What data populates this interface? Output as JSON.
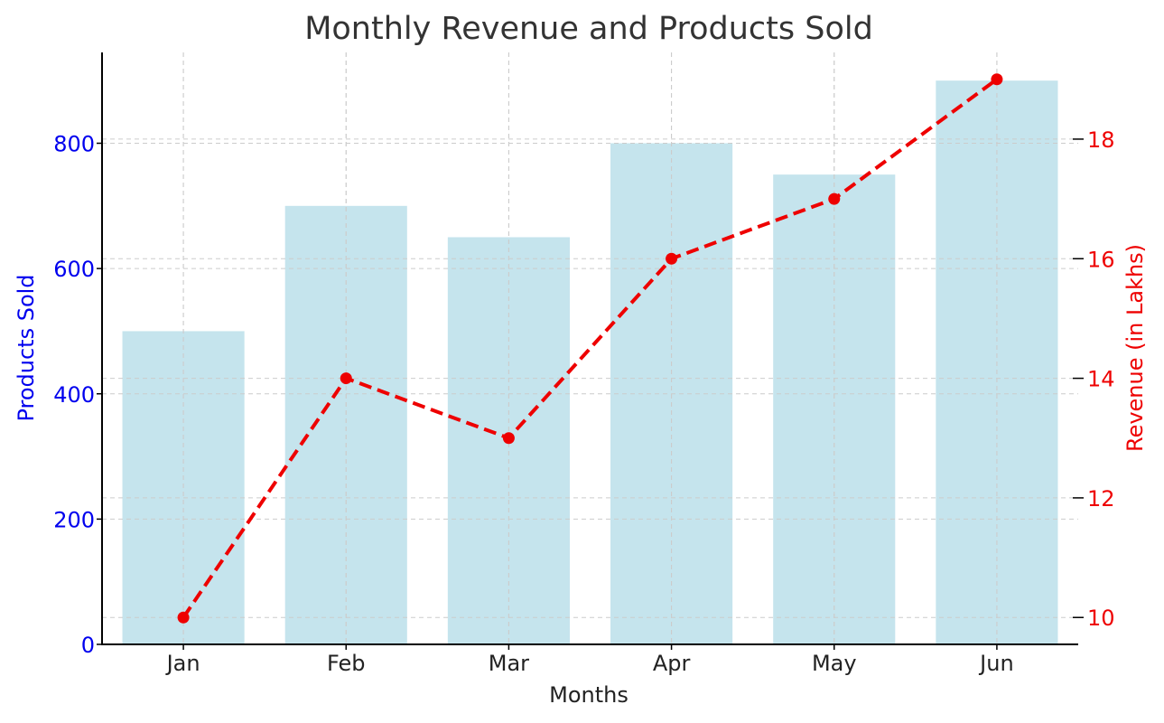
{
  "chart_data": {
    "type": "bar",
    "title": "Monthly Revenue and Products Sold",
    "xlabel": "Months",
    "categories": [
      "Jan",
      "Feb",
      "Mar",
      "Apr",
      "May",
      "Jun"
    ],
    "series": [
      {
        "name": "Products Sold",
        "type": "bar",
        "axis": "left",
        "values": [
          500,
          700,
          650,
          800,
          750,
          900
        ],
        "color": "#add8e6"
      },
      {
        "name": "Revenue",
        "type": "line",
        "axis": "right",
        "line_style": "dashed",
        "marker": "circle",
        "values": [
          10,
          14,
          13,
          16,
          17,
          19
        ],
        "color": "#ee0000"
      }
    ],
    "y_left": {
      "label": "Products Sold",
      "ylim": [
        0,
        945
      ],
      "ticks": [
        0,
        200,
        400,
        600,
        800
      ],
      "color": "#0000ee"
    },
    "y_right": {
      "label": "Revenue (in Lakhs)",
      "ylim": [
        9.55,
        19.45
      ],
      "ticks": [
        10,
        12,
        14,
        16,
        18
      ],
      "color": "#ee0000"
    },
    "grid": true,
    "grid_style": "dashed",
    "grid_color": "#cccccc",
    "legend": "none"
  }
}
